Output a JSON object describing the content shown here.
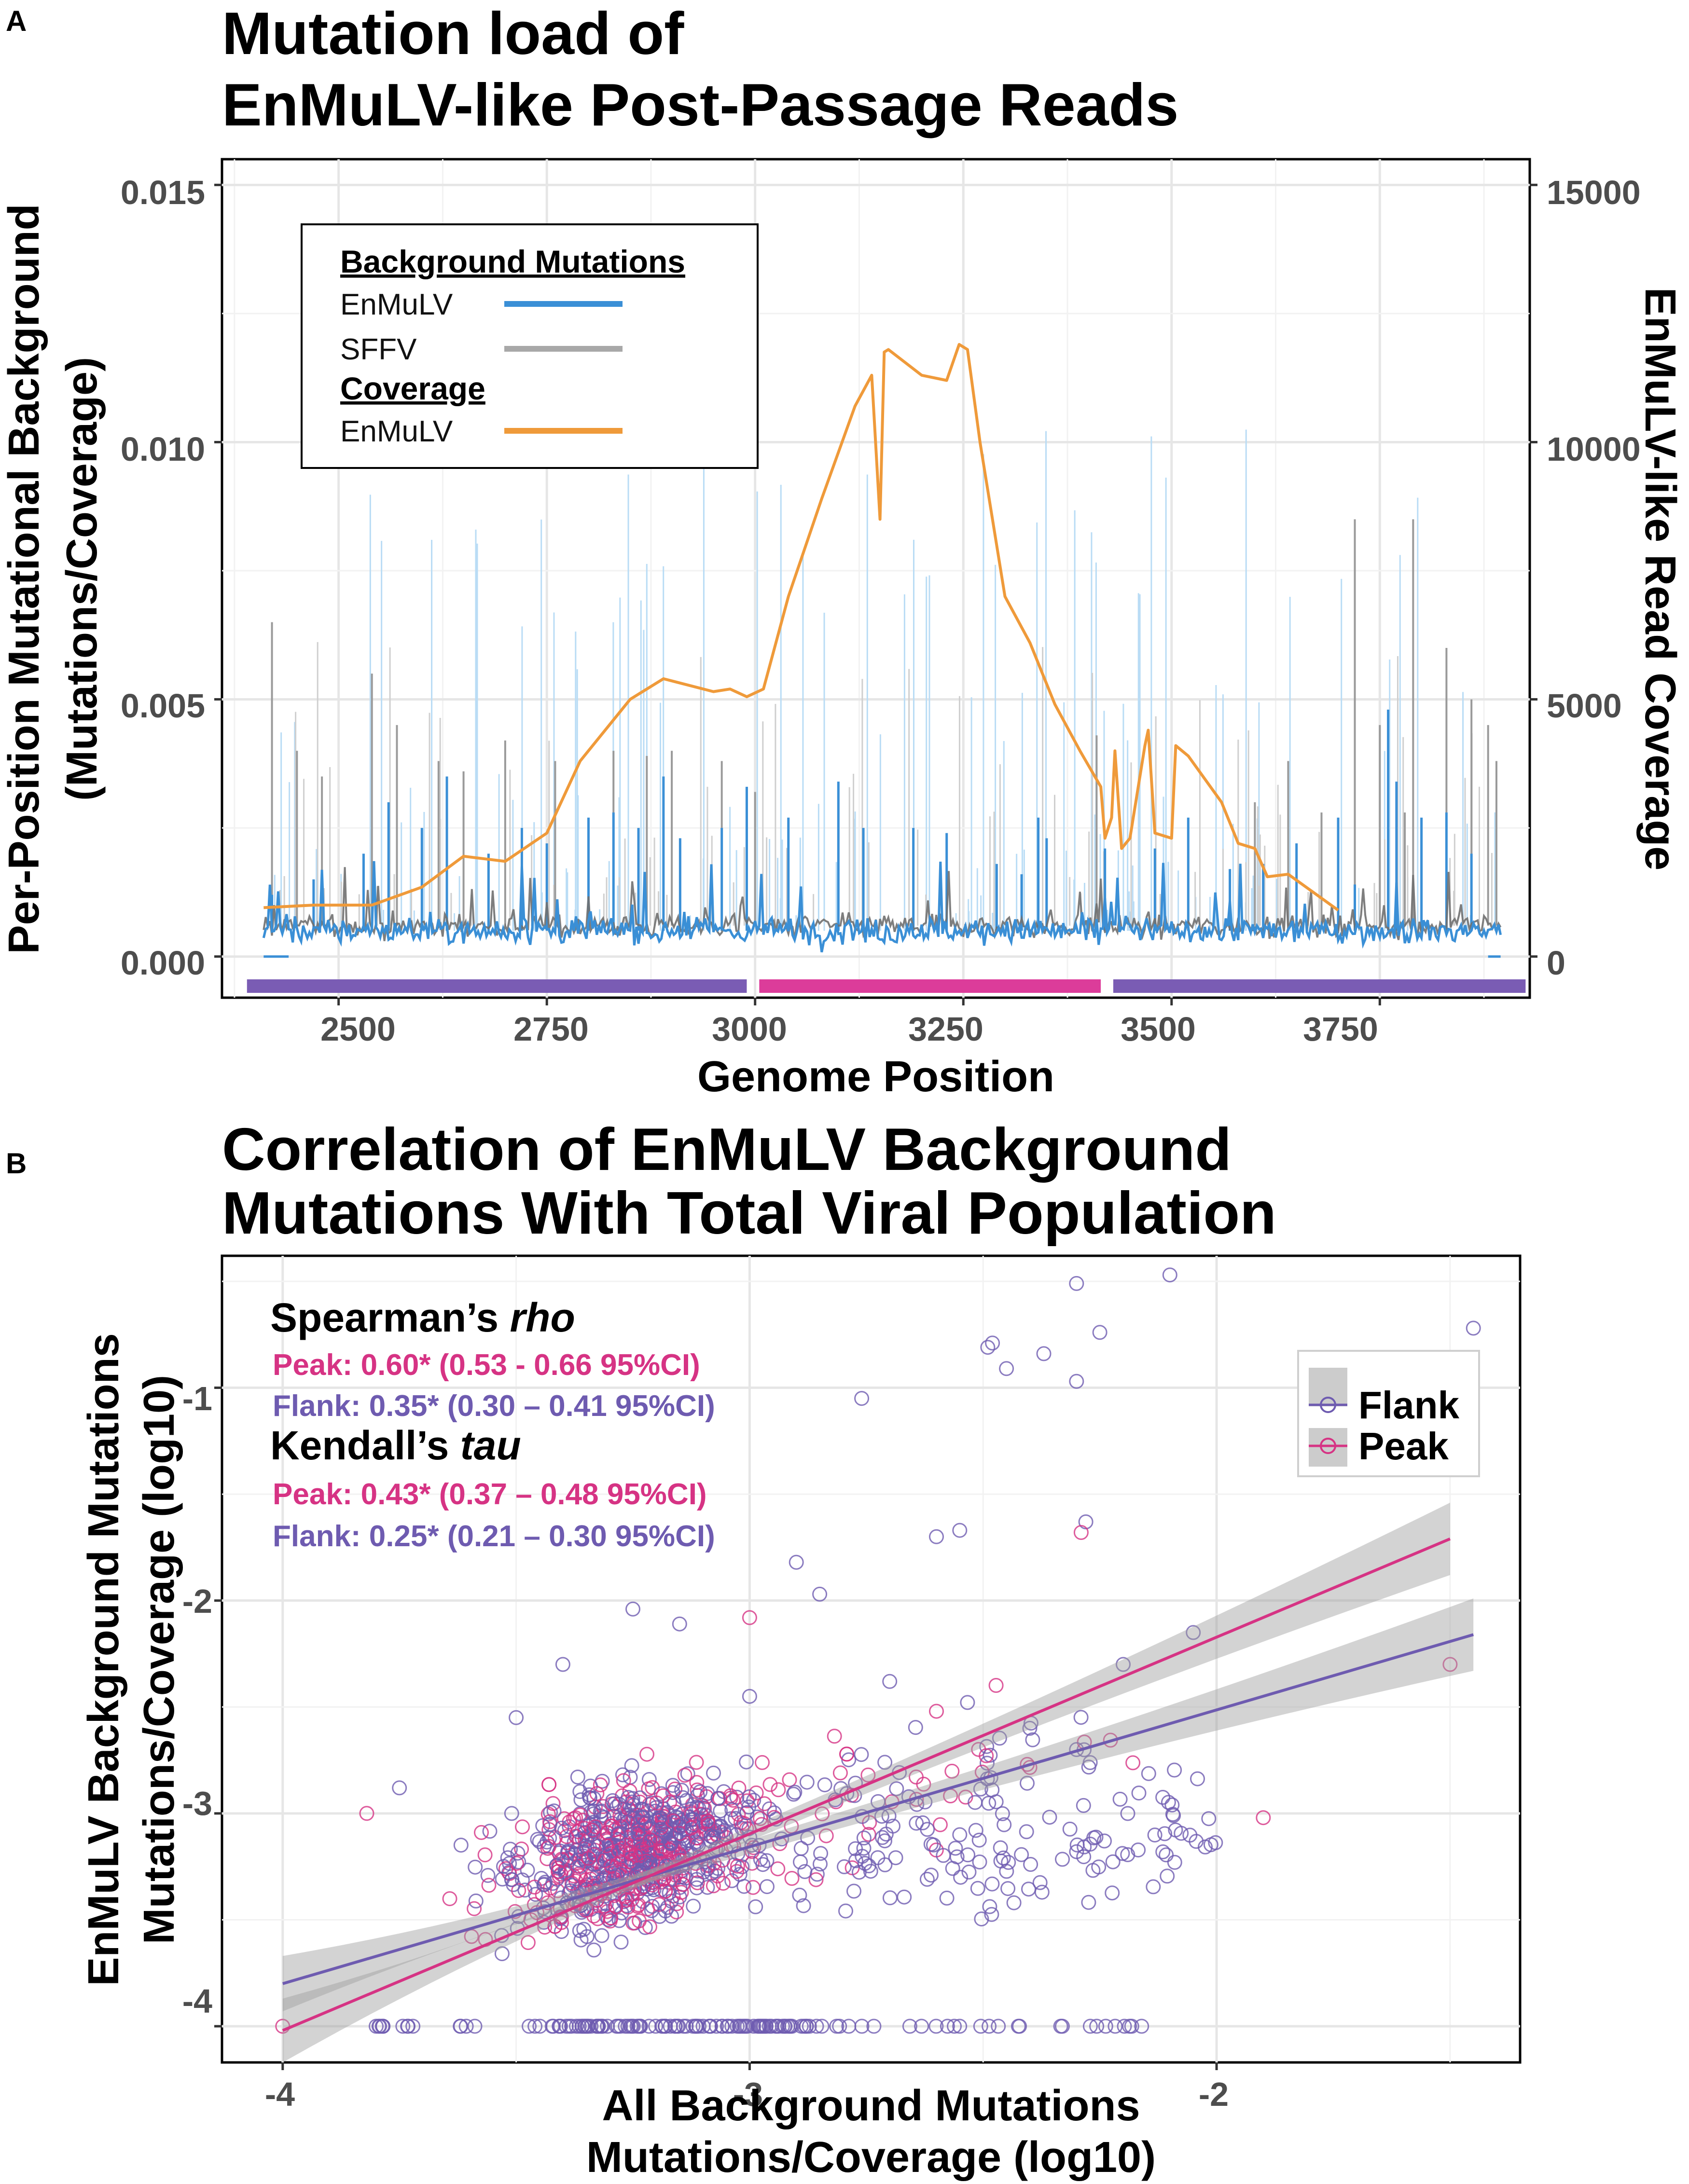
{
  "panel_a": {
    "letter": "A",
    "title_line1": "Mutation load of",
    "title_line2": "EnMuLV-like Post-Passage Reads",
    "xlabel": "Genome Position",
    "ylabel_line1": "Per-Position Mutational Background",
    "ylabel_line2": "(Mutations/Coverage)",
    "y2label": "EnMuLV-like Read Coverage",
    "x_ticks": [
      "2500",
      "2750",
      "3000",
      "3250",
      "3500",
      "3750"
    ],
    "y_ticks": [
      "0.000",
      "0.005",
      "0.010",
      "0.015"
    ],
    "y2_ticks": [
      "0",
      "5000",
      "10000",
      "15000"
    ],
    "legend": {
      "head1": "Background Mutations",
      "item1": "EnMuLV",
      "item2": "SFFV",
      "head2": "Coverage",
      "item3": "EnMuLV"
    }
  },
  "panel_b": {
    "letter": "B",
    "title_line1": "Correlation of EnMuLV Background",
    "title_line2": "Mutations With Total Viral Population",
    "xlabel_line1": "All Background Mutations",
    "xlabel_line2": "Mutations/Coverage (log10)",
    "ylabel_line1": "EnMuLV Background Mutations",
    "ylabel_line2": "Mutations/Coverage (log10)",
    "x_ticks": [
      "-4",
      "-3",
      "-2"
    ],
    "y_ticks": [
      "-1",
      "-2",
      "-3",
      "-4"
    ],
    "stats": {
      "spearman_prefix": "Spearman’s ",
      "spearman_italic": "rho",
      "spearman_peak": "Peak: 0.60* (0.53 - 0.66 95%CI)",
      "spearman_flank": "Flank: 0.35* (0.30 – 0.41 95%CI)",
      "kendall_prefix": "Kendall’s ",
      "kendall_italic": "tau",
      "kendall_peak": "Peak: 0.43* (0.37 – 0.48 95%CI)",
      "kendall_flank": "Flank: 0.25* (0.21 – 0.30 95%CI)"
    },
    "legend": {
      "flank": "Flank",
      "peak": "Peak"
    }
  },
  "colors": {
    "enmulv_bg": "#3a8fd6",
    "sffv_bg": "#707070",
    "coverage": "#ef9a3a",
    "bar_flank": "#7a5cb4",
    "bar_peak": "#dc3c9a",
    "flank": "#6e5bb0",
    "peak": "#d63384"
  },
  "chart_data": [
    {
      "type": "line",
      "title": "Mutation load of EnMuLV-like Post-Passage Reads",
      "xlabel": "Genome Position",
      "ylabel": "Per-Position Mutational Background (Mutations/Coverage)",
      "y2label": "EnMuLV-like Read Coverage",
      "xlim": [
        2360,
        3930
      ],
      "ylim": [
        -0.0008,
        0.0155
      ],
      "y2lim": [
        -800,
        15500
      ],
      "grid": true,
      "legend_position": "top-left",
      "regions": [
        {
          "name": "flank",
          "start": 2390,
          "end": 2990
        },
        {
          "name": "peak",
          "start": 3005,
          "end": 3415
        },
        {
          "name": "flank",
          "start": 3430,
          "end": 3925
        }
      ],
      "series": [
        {
          "name": "Coverage EnMuLV",
          "axis": "right",
          "x": [
            2410,
            2470,
            2540,
            2600,
            2650,
            2700,
            2750,
            2790,
            2850,
            2890,
            2950,
            2970,
            2990,
            3010,
            3040,
            3080,
            3120,
            3140,
            3150,
            3155,
            3160,
            3200,
            3230,
            3245,
            3255,
            3270,
            3300,
            3330,
            3360,
            3390,
            3415,
            3420,
            3428,
            3432,
            3440,
            3450,
            3468,
            3472,
            3480,
            3500,
            3505,
            3520,
            3560,
            3580,
            3600,
            3615,
            3640,
            3700
          ],
          "values": [
            950,
            1000,
            1000,
            1350,
            1950,
            1850,
            2400,
            3800,
            5000,
            5400,
            5150,
            5200,
            5050,
            5200,
            7000,
            8900,
            10700,
            11300,
            8500,
            11750,
            11800,
            11300,
            11200,
            11900,
            11800,
            10000,
            7000,
            6100,
            4900,
            4000,
            3300,
            2300,
            2700,
            4000,
            2100,
            2300,
            4100,
            4400,
            2400,
            2300,
            4100,
            3900,
            3000,
            2200,
            2100,
            1550,
            1600,
            900
          ]
        },
        {
          "name": "Background Mutations EnMuLV",
          "axis": "left",
          "baseline": 0.0005,
          "spike_x": [
            2420,
            2470,
            2530,
            2560,
            2600,
            2630,
            2680,
            2720,
            2750,
            2800,
            2830,
            2860,
            2890,
            2910,
            2960,
            2990,
            3040,
            3100,
            3130,
            3190,
            3230,
            3290,
            3320,
            3340,
            3350,
            3420,
            3480,
            3520,
            3570,
            3610,
            3650,
            3700,
            3720,
            3760,
            3770,
            3800,
            3830,
            3860
          ],
          "spike_values": [
            0.0012,
            0.0015,
            0.002,
            0.003,
            0.0025,
            0.0035,
            0.002,
            0.0025,
            0.0022,
            0.0027,
            0.0028,
            0.0025,
            0.0035,
            0.0023,
            0.0025,
            0.0033,
            0.0027,
            0.0034,
            0.0025,
            0.0025,
            0.0024,
            0.0018,
            0.0016,
            0.0027,
            0.0023,
            0.0021,
            0.0021,
            0.0027,
            0.0017,
            0.0018,
            0.0022,
            0.0027,
            0.0014,
            0.0048,
            0.0034,
            0.0027,
            0.0028,
            0.002
          ]
        },
        {
          "name": "Background Mutations SFFV",
          "axis": "left",
          "baseline": 0.0006,
          "spike_x": [
            2420,
            2450,
            2480,
            2540,
            2570,
            2620,
            2650,
            2700,
            2760,
            2830,
            2870,
            2900,
            2960,
            3000,
            3410,
            3600,
            3640,
            3680,
            3700,
            3720,
            3750,
            3780,
            3790,
            3830,
            3860,
            3880,
            3890
          ],
          "spike_values": [
            0.0065,
            0.004,
            0.0035,
            0.0055,
            0.0045,
            0.0038,
            0.0036,
            0.0042,
            0.0038,
            0.004,
            0.0039,
            0.004,
            0.0038,
            0.0032,
            0.0043,
            0.003,
            0.0038,
            0.0028,
            0.0025,
            0.0085,
            0.0045,
            0.0028,
            0.0085,
            0.006,
            0.005,
            0.0045,
            0.0038
          ]
        }
      ]
    },
    {
      "type": "scatter",
      "title": "Correlation of EnMuLV Background Mutations With Total Viral Population",
      "xlabel": "All Background Mutations Mutations/Coverage (log10)",
      "ylabel": "EnMuLV Background Mutations Mutations/Coverage (log10)",
      "xlim": [
        -4.13,
        -1.35
      ],
      "ylim": [
        -4.17,
        -0.38
      ],
      "grid": true,
      "legend_position": "top-right",
      "series": [
        {
          "name": "Flank",
          "fit": {
            "x": [
              -4.0,
              -1.45
            ],
            "y": [
              -3.8,
              -2.16
            ]
          },
          "outliers_x": [
            -1.45,
            -2.1,
            -2.3,
            -2.25,
            -2.49,
            -2.48,
            -2.45,
            -2.37,
            -2.3,
            -2.76,
            -2.55,
            -2.6,
            -2.85,
            -2.9,
            -3.25,
            -3.15,
            -2.28,
            -2.05,
            -2.2,
            -2.4,
            -3.5,
            -3.75,
            -3.0,
            -2.7,
            -2.3,
            -2.55,
            -3.4
          ],
          "outliers_y": [
            -0.72,
            -0.47,
            -0.51,
            -0.74,
            -0.81,
            -0.79,
            -0.91,
            -0.84,
            -0.97,
            -1.05,
            -1.67,
            -1.7,
            -1.97,
            -1.82,
            -2.04,
            -2.11,
            -1.63,
            -2.15,
            -2.3,
            -2.6,
            -2.55,
            -2.88,
            -2.45,
            -2.38,
            -2.7,
            -3.1,
            -2.3
          ],
          "floor_y": -4.0,
          "floor_x_range": [
            -3.8,
            -2.15
          ]
        },
        {
          "name": "Peak",
          "fit": {
            "x": [
              -4.0,
              -1.5
            ],
            "y": [
              -4.02,
              -1.71
            ]
          },
          "outliers_x": [
            -1.5,
            -1.9,
            -2.29,
            -2.6,
            -3.0,
            -3.82,
            -4.0
          ],
          "outliers_y": [
            -2.3,
            -3.02,
            -1.68,
            -2.52,
            -2.08,
            -3.0,
            -4.0
          ]
        }
      ]
    }
  ]
}
